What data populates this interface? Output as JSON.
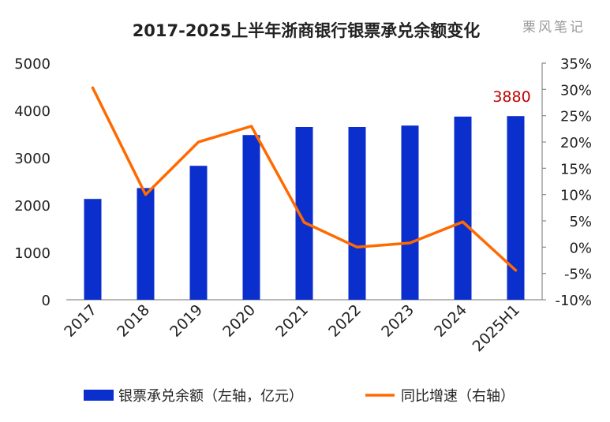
{
  "title": "2017-2025上半年浙商银行银票承兑余额变化",
  "watermark": "栗风笔记",
  "colors": {
    "bar": "#0a2fcc",
    "line": "#ff6a00",
    "callout": "#c00000"
  },
  "chart_data": {
    "type": "bar",
    "categories": [
      "2017",
      "2018",
      "2019",
      "2020",
      "2021",
      "2022",
      "2023",
      "2024",
      "2025H1"
    ],
    "series": [
      {
        "name": "银票承兑余额（左轴，亿元）",
        "type": "bar",
        "axis": "left",
        "values": [
          2130,
          2360,
          2830,
          3480,
          3650,
          3650,
          3680,
          3870,
          3880
        ]
      },
      {
        "name": "同比增速（右轴）",
        "type": "line",
        "axis": "right",
        "values": [
          30.3,
          10.0,
          20.0,
          23.0,
          4.7,
          0.0,
          0.8,
          4.8,
          -4.4
        ]
      }
    ],
    "y_left": {
      "min": 0,
      "max": 5000,
      "ticks": [
        "0",
        "1000",
        "2000",
        "3000",
        "4000",
        "5000"
      ]
    },
    "y_right": {
      "min": -10,
      "max": 35,
      "ticks": [
        "-10%",
        "-5%",
        "0%",
        "5%",
        "10%",
        "15%",
        "20%",
        "25%",
        "30%",
        "35%"
      ]
    },
    "annotation": {
      "text": "3880",
      "category": "2025H1"
    },
    "grid": false,
    "legend_position": "bottom"
  }
}
